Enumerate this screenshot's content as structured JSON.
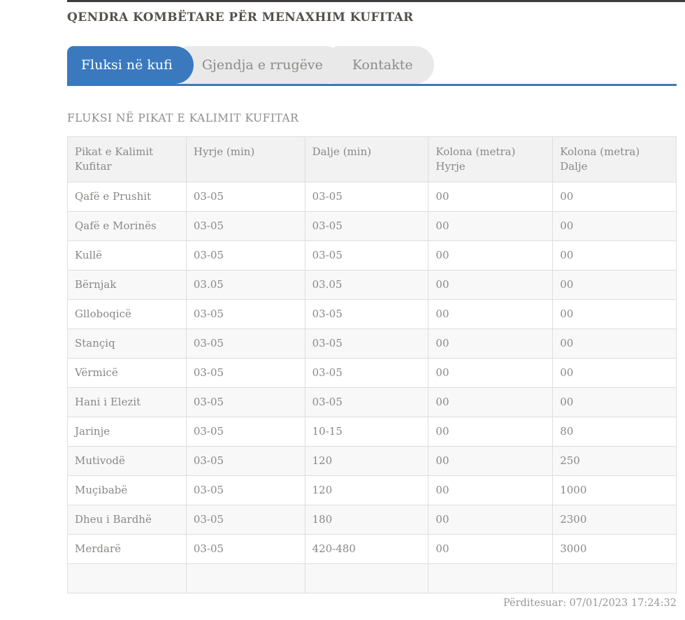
{
  "header": {
    "title": "QENDRA KOMBËTARE PËR MENAXHIM KUFITAR"
  },
  "tabs": {
    "items": [
      {
        "label": "Fluksi në kufi",
        "active": true
      },
      {
        "label": "Gjendja e rrugëve",
        "active": false
      },
      {
        "label": "Kontakte",
        "active": false
      }
    ]
  },
  "section": {
    "heading": "FLUKSI NË PIKAT E KALIMIT KUFITAR"
  },
  "table": {
    "headers": [
      "Pikat e Kalimit\nKufitar",
      "Hyrje (min)",
      "Dalje (min)",
      "Kolona (metra)\nHyrje",
      "Kolona (metra)\nDalje"
    ],
    "rows": [
      {
        "cells": [
          "Qafë e Prushit",
          "03-05",
          "03-05",
          "00",
          "00"
        ]
      },
      {
        "cells": [
          "Qafë e Morinës",
          "03-05",
          "03-05",
          "00",
          "00"
        ]
      },
      {
        "cells": [
          "Kullë",
          "03-05",
          "03-05",
          "00",
          "00"
        ]
      },
      {
        "cells": [
          "Bërnjak",
          "03.05",
          "03.05",
          "00",
          "00"
        ]
      },
      {
        "cells": [
          "Glloboqicë",
          "03-05",
          "03-05",
          "00",
          "00"
        ]
      },
      {
        "cells": [
          "Stançiq",
          "03-05",
          "03-05",
          "00",
          "00"
        ]
      },
      {
        "cells": [
          "Vërmicë",
          "03-05",
          "03-05",
          "00",
          "00"
        ]
      },
      {
        "cells": [
          "Hani i Elezit",
          "03-05",
          "03-05",
          "00",
          "00"
        ]
      },
      {
        "cells": [
          "Jarinje",
          "03-05",
          "10-15",
          "00",
          "80"
        ]
      },
      {
        "cells": [
          "Mutivodë",
          "03-05",
          "120",
          "00",
          "250"
        ]
      },
      {
        "cells": [
          "Muçibabë",
          "03-05",
          "120",
          "00",
          "1000"
        ]
      },
      {
        "cells": [
          "Dheu i Bardhë",
          "03-05",
          "180",
          "00",
          "2300"
        ]
      },
      {
        "cells": [
          "Merdarë",
          "03-05",
          "420-480",
          "00",
          "3000"
        ]
      }
    ]
  },
  "footer": {
    "updated": "Përditesuar: 07/01/2023 17:24:32"
  },
  "colors": {
    "accent_blue": "#3a79be",
    "tab_inactive_bg": "#e9e9e9",
    "table_header_bg": "#f2f2f2",
    "row_alt_bg": "#f8f8f8",
    "border_gray": "#dedede",
    "text_gray": "#8a8886",
    "title_dark": "#54504d",
    "top_line_dark": "#3c3c3c"
  }
}
